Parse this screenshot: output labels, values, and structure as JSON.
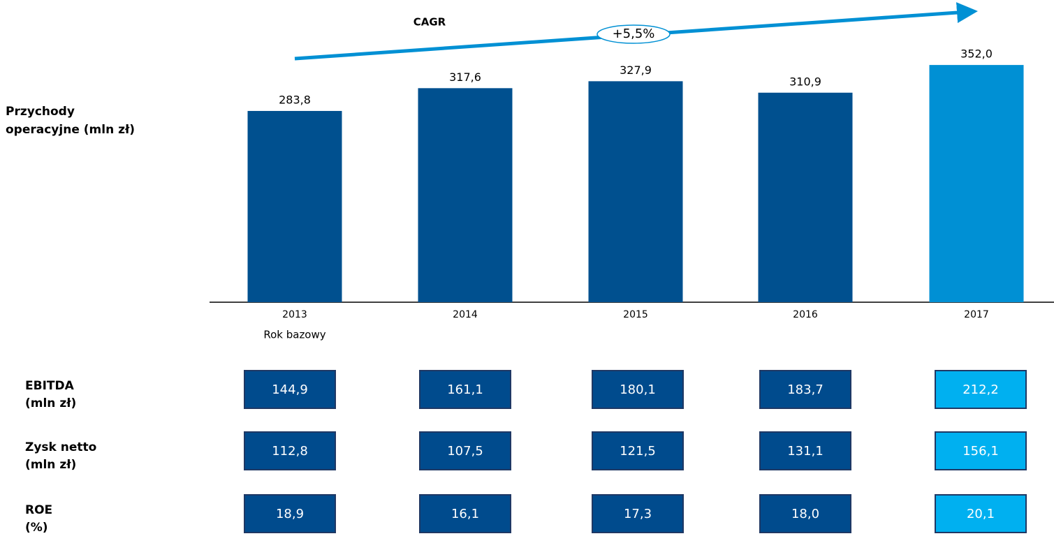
{
  "chart_data": {
    "type": "bar",
    "title_lines": [
      "Przychody",
      "operacyjne (mln zł)"
    ],
    "categories": [
      "2013",
      "2014",
      "2015",
      "2016",
      "2017"
    ],
    "category_note": "Rok bazowy",
    "values": [
      283.8,
      317.6,
      327.9,
      310.9,
      352.0
    ],
    "value_labels": [
      "283,8",
      "317,6",
      "327,9",
      "310,9",
      "352,0"
    ],
    "colors": [
      "#00508f",
      "#00508f",
      "#00508f",
      "#00508f",
      "#0090d4"
    ],
    "annotation": {
      "title": "CAGR",
      "label": "+5,5%",
      "color": "#0090d4"
    },
    "table": {
      "box_colors": [
        "#004b8d",
        "#004b8d",
        "#004b8d",
        "#004b8d",
        "#00b0f0"
      ],
      "rows": [
        {
          "label": [
            "EBITDA",
            "(mln zł)"
          ],
          "cells": [
            "144,9",
            "161,1",
            "180,1",
            "183,7",
            "212,2"
          ]
        },
        {
          "label": [
            "Zysk netto",
            "(mln zł)"
          ],
          "cells": [
            "112,8",
            "107,5",
            "121,5",
            "131,1",
            "156,1"
          ]
        },
        {
          "label": [
            "ROE",
            "(%)"
          ],
          "cells": [
            "18,9",
            "16,1",
            "17,3",
            "18,0",
            "20,1"
          ]
        }
      ]
    }
  }
}
